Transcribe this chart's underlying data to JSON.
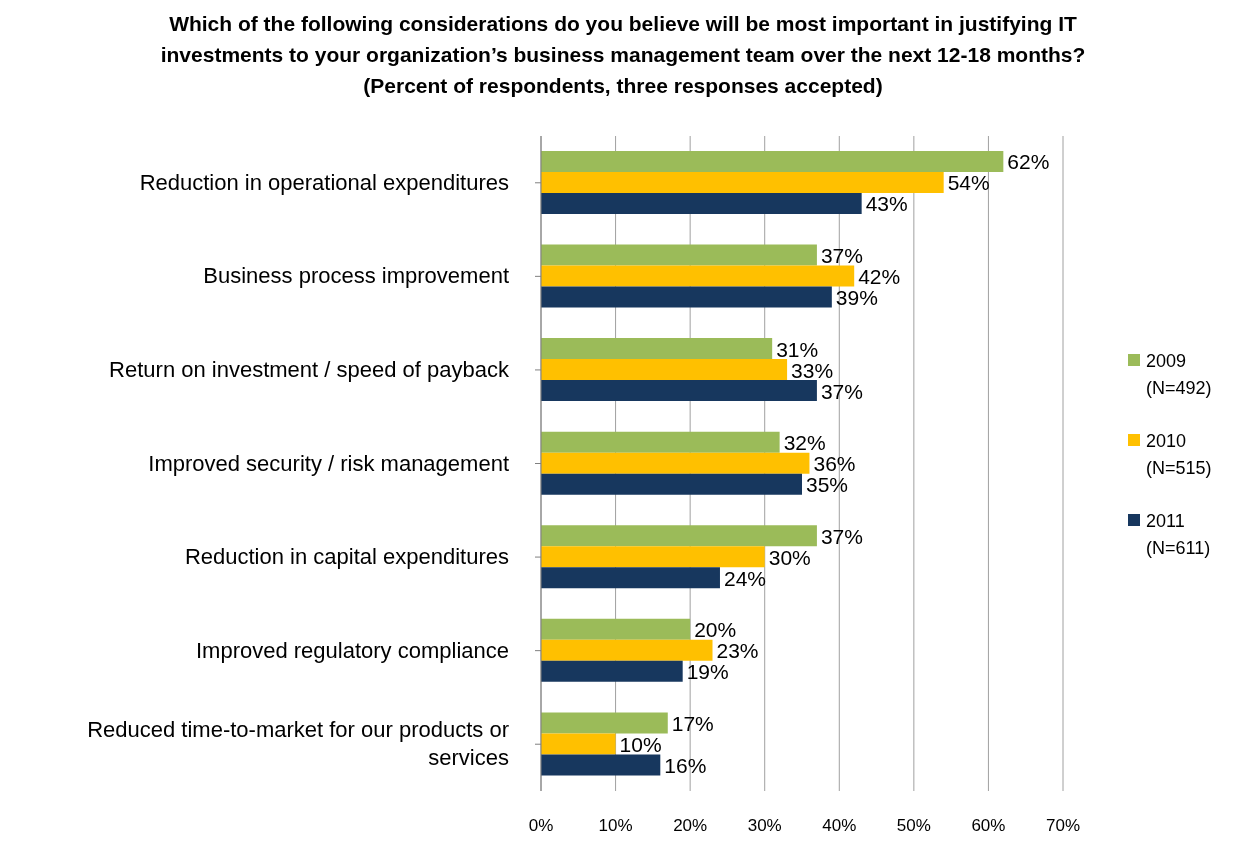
{
  "chart_data": {
    "type": "bar",
    "orientation": "horizontal",
    "title": "Which of the following considerations do you believe will be most important in justifying IT investments to your organization’s business management team over the next 12-18 months? (Percent of respondents, three responses accepted)",
    "categories": [
      "Reduction in operational expenditures",
      "Business process improvement",
      "Return on investment / speed of payback",
      "Improved security / risk management",
      "Reduction in capital expenditures",
      "Improved regulatory compliance",
      "Reduced time-to-market for our products or services"
    ],
    "series": [
      {
        "name": "2009 (N=492)",
        "color": "#9bbb59",
        "values": [
          62,
          37,
          31,
          32,
          37,
          20,
          17
        ],
        "value_labels": [
          "62%",
          "37%",
          "31%",
          "32%",
          "37%",
          "20%",
          "17%"
        ]
      },
      {
        "name": "2010 (N=515)",
        "color": "#ffc000",
        "values": [
          54,
          42,
          33,
          36,
          30,
          23,
          10
        ],
        "value_labels": [
          "54%",
          "42%",
          "33%",
          "36%",
          "30%",
          "23%",
          "10%"
        ]
      },
      {
        "name": "2011 (N=611)",
        "color": "#17375e",
        "values": [
          43,
          39,
          37,
          35,
          24,
          19,
          16
        ],
        "value_labels": [
          "43%",
          "39%",
          "37%",
          "35%",
          "24%",
          "19%",
          "16%"
        ]
      }
    ],
    "xlim": [
      0,
      70
    ],
    "xticks": [
      {
        "value": 0,
        "label": "0%"
      },
      {
        "value": 10,
        "label": "10%"
      },
      {
        "value": 20,
        "label": "20%"
      },
      {
        "value": 30,
        "label": "30%"
      },
      {
        "value": 40,
        "label": "40%"
      },
      {
        "value": 50,
        "label": "50%"
      },
      {
        "value": 60,
        "label": "60%"
      },
      {
        "value": 70,
        "label": "70%"
      }
    ],
    "grid": "x",
    "legend": "right"
  }
}
